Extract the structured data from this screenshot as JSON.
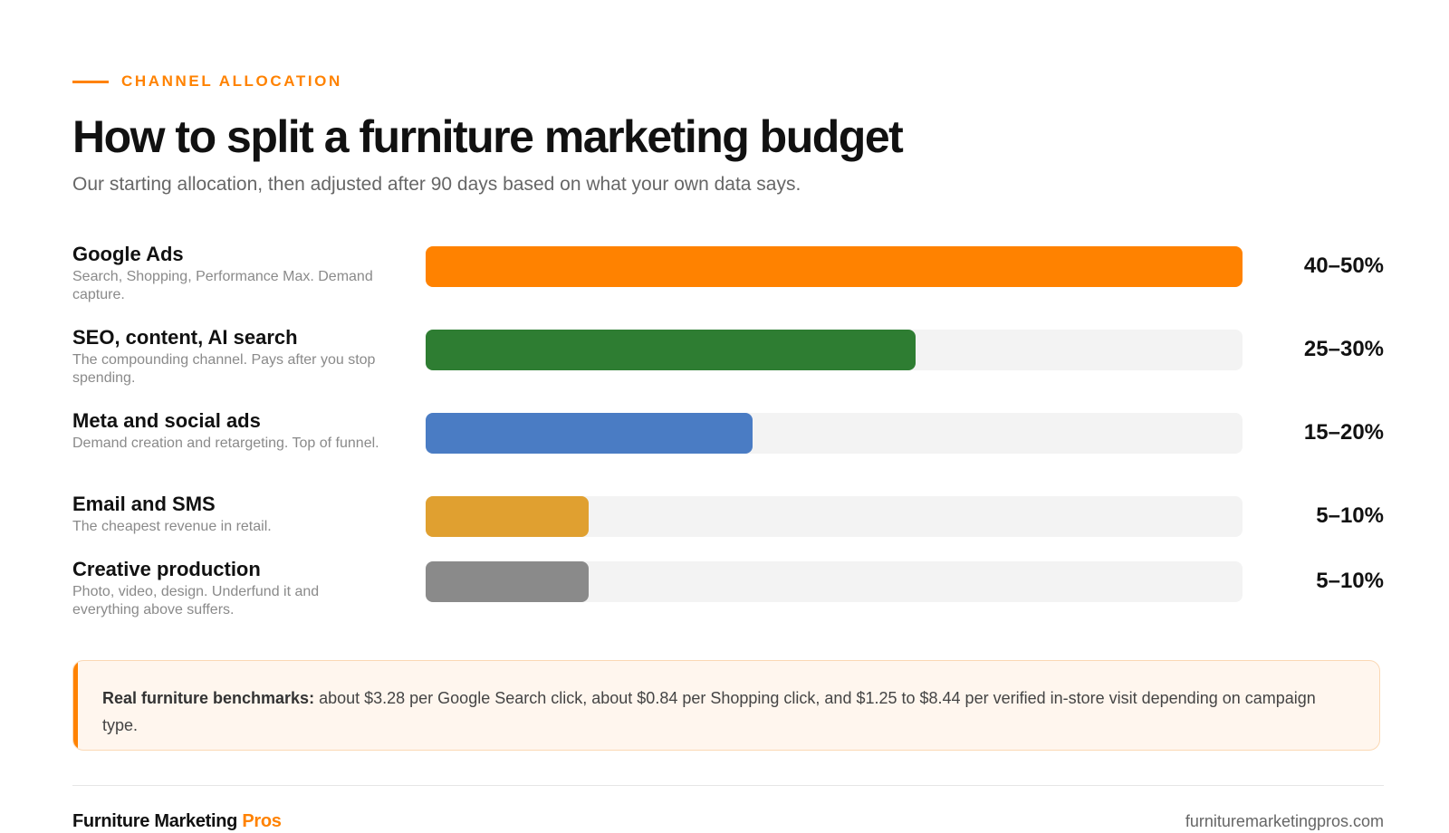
{
  "eyebrow": "CHANNEL ALLOCATION",
  "title": "How to split a furniture marketing budget",
  "subtitle": "Our starting allocation, then adjusted after 90 days based on what your own data says.",
  "chart_data": {
    "type": "bar",
    "orientation": "horizontal",
    "grid": false,
    "legend": "none",
    "xlim": [
      0,
      50
    ],
    "categories": [
      "Google Ads",
      "SEO, content, AI search",
      "Meta and social ads",
      "Email and SMS",
      "Creative production"
    ],
    "descriptions": [
      "Search, Shopping, Performance Max. Demand capture.",
      "The compounding channel. Pays after you stop spending.",
      "Demand creation and retargeting. Top of funnel.",
      "The cheapest revenue in retail.",
      "Photo, video, design. Underfund it and everything above suffers."
    ],
    "values": [
      50,
      30,
      20,
      10,
      10
    ],
    "value_labels": [
      "40–50%",
      "25–30%",
      "15–20%",
      "5–10%",
      "5–10%"
    ],
    "colors": [
      "#ff8200",
      "#2e7d32",
      "#4a7cc4",
      "#e0a030",
      "#8a8a8a"
    ]
  },
  "callout": {
    "strong": "Real furniture benchmarks:",
    "text": " about $3.28 per Google Search click, about $0.84 per Shopping click, and $1.25 to $8.44 per verified in-store visit depending on campaign type."
  },
  "footer": {
    "brand_main": "Furniture Marketing ",
    "brand_accent": "Pros",
    "site": "furnituremarketingpros.com"
  },
  "colors": {
    "accent": "#ff8200",
    "track": "#f3f3f3",
    "callout_bg": "#fff6ee"
  }
}
